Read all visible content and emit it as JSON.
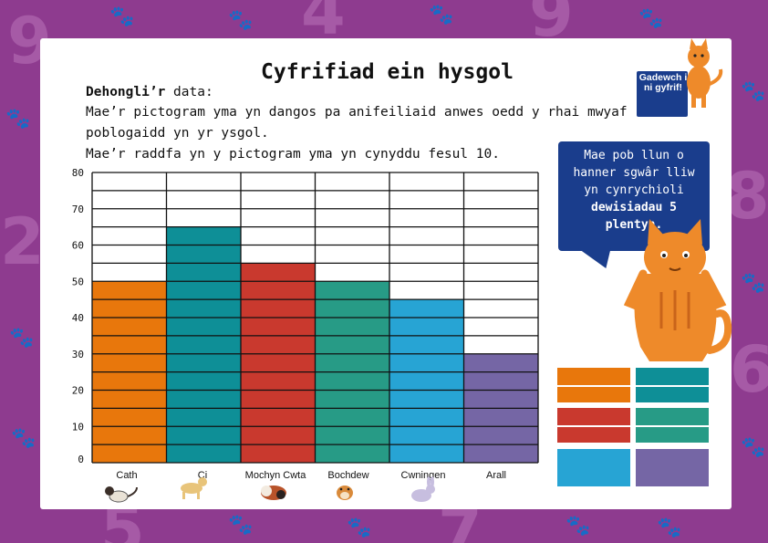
{
  "page": {
    "title": "Cyfrifiad ein hysgol",
    "intro": {
      "heading_bold": "Dehongli’r",
      "heading_rest": " data:",
      "line1": "Mae’r pictogram yma yn dangos pa anifeiliaid anwes oedd y rhai mwyaf",
      "line2": "poblogaidd yn yr ysgol.",
      "line3": "Mae’r raddfa yn y pictogram yma yn cynyddu fesul 10."
    },
    "badge": "Gadewch i ni gyfrif!",
    "bubble": {
      "line1": "Mae pob llun o",
      "line2": "hanner sgwâr lliw",
      "line3": "yn cynrychioli",
      "line4": "dewisiadau 5",
      "line5": "plentyn."
    }
  },
  "chart_data": {
    "type": "bar",
    "categories": [
      "Cath",
      "Ci",
      "Mochyn Cwta",
      "Bochdew",
      "Cwningen",
      "Arall"
    ],
    "values": [
      50,
      65,
      55,
      50,
      45,
      30
    ],
    "colors": [
      "#e8770c",
      "#0e8f97",
      "#c9392e",
      "#279b86",
      "#27a4d4",
      "#7566a5"
    ],
    "yticks": [
      0,
      10,
      20,
      30,
      40,
      50,
      60,
      70,
      80
    ],
    "ylim": [
      0,
      80
    ],
    "grid": true
  },
  "key": {
    "colors": [
      "#e8770c",
      "#0e8f97",
      "#c9392e",
      "#279b86",
      "#27a4d4",
      "#7566a5"
    ]
  },
  "icons": {
    "cath": "cat-icon",
    "ci": "dog-icon",
    "mochyn_cwta": "guinea-pig-icon",
    "bochdew": "hamster-icon",
    "cwningen": "rabbit-icon",
    "mascot": "cat-mascot-icon"
  }
}
